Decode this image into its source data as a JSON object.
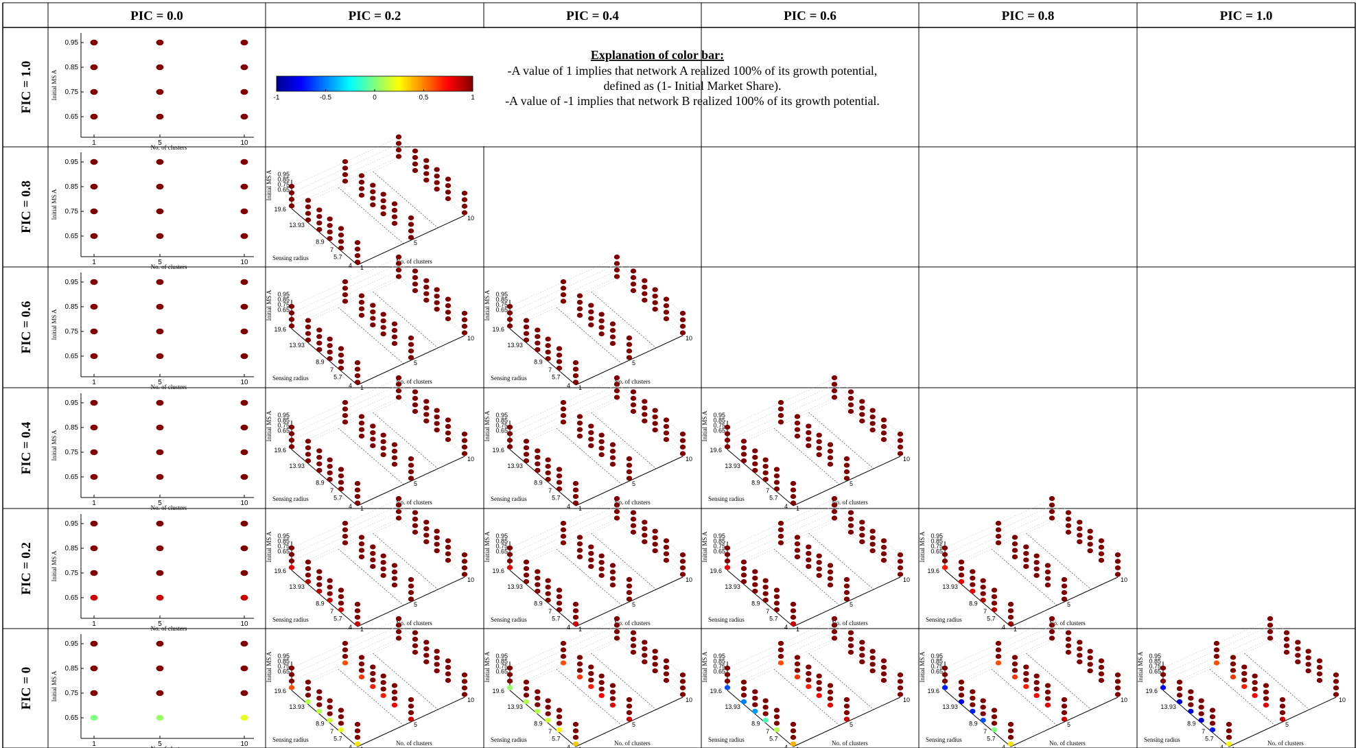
{
  "columns": [
    "PIC = 0.0",
    "PIC = 0.2",
    "PIC = 0.4",
    "PIC = 0.6",
    "PIC = 0.8",
    "PIC = 1.0"
  ],
  "rows": [
    "FIC = 1.0",
    "FIC = 0.8",
    "FIC = 0.6",
    "FIC = 0.4",
    "FIC = 0.2",
    "FIC = 0"
  ],
  "explanation": {
    "title": "Explanation of color bar:",
    "line1": "-A value of 1 implies that network A realized 100% of its growth potential, defined as (1- Initial Market Share).",
    "line2": "-A value of -1 implies that network B realized 100% of its growth potential."
  },
  "colorbar": {
    "ticks": [
      "-1",
      "-0.5",
      "0",
      "0.5",
      "1"
    ],
    "colormap": [
      "#00008f",
      "#0000ff",
      "#0080ff",
      "#00ffff",
      "#80ff80",
      "#ffff00",
      "#ff8000",
      "#ff0000",
      "#800000"
    ],
    "range": [
      -1,
      1
    ]
  },
  "chart_data": {
    "type": "scatter",
    "value_range": [
      -1,
      1
    ],
    "panels_2d": {
      "x_categories": [
        "1",
        "5",
        "10"
      ],
      "y_ticks": [
        "0.95",
        "0.85",
        "0.75",
        "0.65"
      ],
      "xlabel": "No. of clusters",
      "ylabel": "Initial MS A"
    },
    "panels_3d": {
      "ms_ticks": [
        "0.95",
        "0.85",
        "0.75",
        "0.65"
      ],
      "radius_ticks": [
        "19.6",
        "13.93",
        "8.9",
        "7",
        "5.7",
        "4"
      ],
      "cluster_ticks": [
        "1",
        "5",
        "10"
      ],
      "xlabel": "No. of clusters",
      "ylabel": "Sensing radius",
      "zlabel": "Initial MS A"
    },
    "panels": [
      {
        "fic": "1.0",
        "pic": "0.0",
        "kind": "2d",
        "values": [
          [
            1,
            1,
            1
          ],
          [
            1,
            1,
            1
          ],
          [
            1,
            1,
            1
          ],
          [
            1,
            1,
            1
          ]
        ]
      },
      {
        "fic": "0.8",
        "pic": "0.0",
        "kind": "2d",
        "values": [
          [
            1,
            1,
            1
          ],
          [
            1,
            1,
            1
          ],
          [
            1,
            1,
            1
          ],
          [
            1,
            1,
            1
          ]
        ]
      },
      {
        "fic": "0.6",
        "pic": "0.0",
        "kind": "2d",
        "values": [
          [
            1,
            1,
            1
          ],
          [
            1,
            1,
            1
          ],
          [
            1,
            1,
            1
          ],
          [
            1,
            1,
            1
          ]
        ]
      },
      {
        "fic": "0.4",
        "pic": "0.0",
        "kind": "2d",
        "values": [
          [
            1,
            1,
            1
          ],
          [
            1,
            1,
            1
          ],
          [
            1,
            1,
            1
          ],
          [
            1,
            1,
            1
          ]
        ]
      },
      {
        "fic": "0.2",
        "pic": "0.0",
        "kind": "2d",
        "values": [
          [
            1,
            1,
            1
          ],
          [
            1,
            1,
            1
          ],
          [
            1,
            1,
            1
          ],
          [
            0.85,
            0.85,
            0.85
          ]
        ]
      },
      {
        "fic": "0",
        "pic": "0.0",
        "kind": "2d",
        "values": [
          [
            1,
            1,
            1
          ],
          [
            1,
            1,
            1
          ],
          [
            1,
            1,
            1
          ],
          [
            0.0,
            0.05,
            0.2
          ]
        ]
      },
      {
        "fic": "0.8",
        "pic": "0.2",
        "kind": "3d",
        "low": [
          1,
          1,
          1,
          1,
          1,
          1
        ],
        "mid": [
          1,
          1,
          1,
          1,
          1,
          1
        ]
      },
      {
        "fic": "0.6",
        "pic": "0.2",
        "kind": "3d",
        "low": [
          1,
          1,
          1,
          1,
          1,
          1
        ],
        "mid": [
          1,
          1,
          1,
          1,
          1,
          1
        ]
      },
      {
        "fic": "0.6",
        "pic": "0.4",
        "kind": "3d",
        "low": [
          1,
          1,
          1,
          1,
          1,
          1
        ],
        "mid": [
          1,
          1,
          1,
          1,
          1,
          1
        ]
      },
      {
        "fic": "0.4",
        "pic": "0.2",
        "kind": "3d",
        "low": [
          1,
          1,
          1,
          1,
          1,
          1
        ],
        "mid": [
          1,
          1,
          1,
          1,
          1,
          1
        ]
      },
      {
        "fic": "0.4",
        "pic": "0.4",
        "kind": "3d",
        "low": [
          1,
          1,
          1,
          1,
          1,
          1
        ],
        "mid": [
          1,
          1,
          1,
          1,
          1,
          1
        ]
      },
      {
        "fic": "0.4",
        "pic": "0.6",
        "kind": "3d",
        "low": [
          1,
          1,
          1,
          1,
          1,
          1
        ],
        "mid": [
          1,
          1,
          1,
          1,
          1,
          1
        ]
      },
      {
        "fic": "0.2",
        "pic": "0.2",
        "kind": "3d",
        "low": [
          0.8,
          0.9,
          0.9,
          0.85,
          0.85,
          0.85
        ],
        "mid": [
          1,
          1,
          1,
          1,
          1,
          1
        ]
      },
      {
        "fic": "0.2",
        "pic": "0.4",
        "kind": "3d",
        "low": [
          0.8,
          1,
          1,
          1,
          1,
          0.85
        ],
        "mid": [
          1,
          1,
          1,
          1,
          1,
          1
        ]
      },
      {
        "fic": "0.2",
        "pic": "0.6",
        "kind": "3d",
        "low": [
          0.8,
          1,
          1,
          1,
          1,
          0.85
        ],
        "mid": [
          1,
          1,
          1,
          1,
          1,
          1
        ]
      },
      {
        "fic": "0.2",
        "pic": "0.8",
        "kind": "3d",
        "low": [
          0.7,
          0.8,
          0.8,
          0.9,
          0.9,
          0.95
        ],
        "mid": [
          1,
          1,
          1,
          1,
          1,
          1
        ]
      },
      {
        "fic": "0",
        "pic": "0.2",
        "kind": "3d",
        "low": [
          0.6,
          0.1,
          0.1,
          0.15,
          0.2,
          0.3
        ],
        "mid": [
          0.6,
          0.65,
          0.7,
          0.7,
          0.75,
          0.85
        ]
      },
      {
        "fic": "0",
        "pic": "0.4",
        "kind": "3d",
        "low": [
          0.05,
          0.1,
          0.1,
          0.15,
          0.25,
          0.35
        ],
        "mid": [
          0.6,
          0.65,
          0.7,
          0.75,
          0.8,
          0.85
        ]
      },
      {
        "fic": "0",
        "pic": "0.6",
        "kind": "3d",
        "low": [
          -0.6,
          -0.5,
          -0.45,
          -0.1,
          0.1,
          0.4
        ],
        "mid": [
          0.6,
          0.65,
          0.7,
          0.75,
          0.8,
          0.85
        ]
      },
      {
        "fic": "0",
        "pic": "0.8",
        "kind": "3d",
        "low": [
          -0.7,
          -0.8,
          -0.7,
          -0.6,
          0.0,
          0.3
        ],
        "mid": [
          0.6,
          0.65,
          0.7,
          0.75,
          0.8,
          0.85
        ]
      },
      {
        "fic": "0",
        "pic": "1.0",
        "kind": "3d",
        "low": [
          -0.75,
          -0.85,
          -0.85,
          -0.85,
          -0.7,
          0.25
        ],
        "mid": [
          0.6,
          0.65,
          0.7,
          0.75,
          0.8,
          0.85
        ]
      }
    ]
  }
}
